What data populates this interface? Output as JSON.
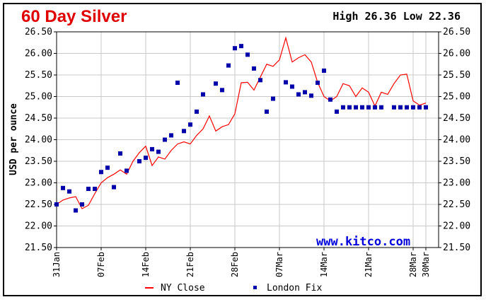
{
  "header": {
    "title": "60 Day Silver",
    "high_low": "High 26.36 Low 22.36"
  },
  "watermark": "www.kitco.com",
  "chart_data": {
    "type": "line",
    "title": "60 Day Silver",
    "ylabel": "USD per ounce",
    "xlabel": "",
    "ylim": [
      21.5,
      26.5
    ],
    "yticks": [
      "26.50",
      "26.00",
      "25.50",
      "25.00",
      "24.50",
      "24.00",
      "23.50",
      "23.00",
      "22.50",
      "22.00",
      "21.50"
    ],
    "xlim": [
      0,
      60
    ],
    "xticks": [
      {
        "label": "31Jan",
        "x": 0
      },
      {
        "label": "07Feb",
        "x": 7
      },
      {
        "label": "14Feb",
        "x": 14
      },
      {
        "label": "21Feb",
        "x": 21
      },
      {
        "label": "28Feb",
        "x": 28
      },
      {
        "label": "07Mar",
        "x": 35
      },
      {
        "label": "14Mar",
        "x": 42
      },
      {
        "label": "21Mar",
        "x": 49
      },
      {
        "label": "28Mar",
        "x": 56
      },
      {
        "label": "30Mar",
        "x": 58
      }
    ],
    "grid": true,
    "legend_position": "bottom",
    "series": [
      {
        "name": "NY Close",
        "color": "#ff0000",
        "style": "line",
        "x": [
          0,
          1,
          2,
          3,
          4,
          5,
          6,
          7,
          8,
          9,
          10,
          11,
          12,
          13,
          14,
          15,
          16,
          17,
          18,
          19,
          20,
          21,
          22,
          23,
          24,
          25,
          26,
          27,
          28,
          29,
          30,
          31,
          32,
          33,
          34,
          35,
          36,
          37,
          38,
          39,
          40,
          41,
          42,
          43,
          44,
          45,
          46,
          47,
          48,
          49,
          50,
          51,
          52,
          53,
          54,
          55,
          56,
          57,
          58
        ],
        "values": [
          22.5,
          22.6,
          22.65,
          22.68,
          22.4,
          22.48,
          22.75,
          23.0,
          23.12,
          23.2,
          23.3,
          23.2,
          23.5,
          23.7,
          23.85,
          23.4,
          23.6,
          23.55,
          23.75,
          23.9,
          23.95,
          23.9,
          24.1,
          24.25,
          24.55,
          24.2,
          24.3,
          24.35,
          24.6,
          25.32,
          25.33,
          25.15,
          25.45,
          25.75,
          25.7,
          25.85,
          26.36,
          25.8,
          25.9,
          25.97,
          25.8,
          25.33,
          25.0,
          24.9,
          25.0,
          25.3,
          25.25,
          25.0,
          25.2,
          25.1,
          24.78,
          25.1,
          25.05,
          25.3,
          25.5,
          25.52,
          24.9,
          24.8,
          24.85
        ]
      },
      {
        "name": "London Fix",
        "color": "#0000aa",
        "style": "square",
        "x": [
          0,
          1,
          2,
          3,
          4,
          5,
          6,
          7,
          8,
          9,
          10,
          11,
          13,
          14,
          15,
          16,
          17,
          18,
          19,
          20,
          21,
          22,
          23,
          25,
          26,
          27,
          28,
          29,
          30,
          31,
          32,
          33,
          34,
          36,
          37,
          38,
          39,
          40,
          41,
          42,
          43,
          44,
          45,
          46,
          47,
          48,
          49,
          50,
          51,
          53,
          54,
          55,
          56,
          57,
          58
        ],
        "values": [
          22.5,
          22.88,
          22.8,
          22.36,
          22.5,
          22.86,
          22.86,
          23.25,
          23.35,
          22.9,
          23.68,
          23.28,
          23.5,
          23.58,
          23.78,
          23.72,
          24.0,
          24.1,
          25.32,
          24.2,
          24.35,
          24.65,
          25.05,
          25.3,
          25.15,
          25.72,
          26.12,
          26.17,
          25.97,
          25.65,
          25.38,
          24.65,
          24.95,
          25.33,
          25.23,
          25.05,
          25.1,
          25.02,
          25.32,
          25.6,
          24.93,
          24.65,
          24.75,
          24.75,
          24.75,
          24.75,
          24.75,
          24.75,
          24.75,
          24.75,
          24.75,
          24.75,
          24.75,
          24.75,
          24.75
        ]
      }
    ]
  }
}
